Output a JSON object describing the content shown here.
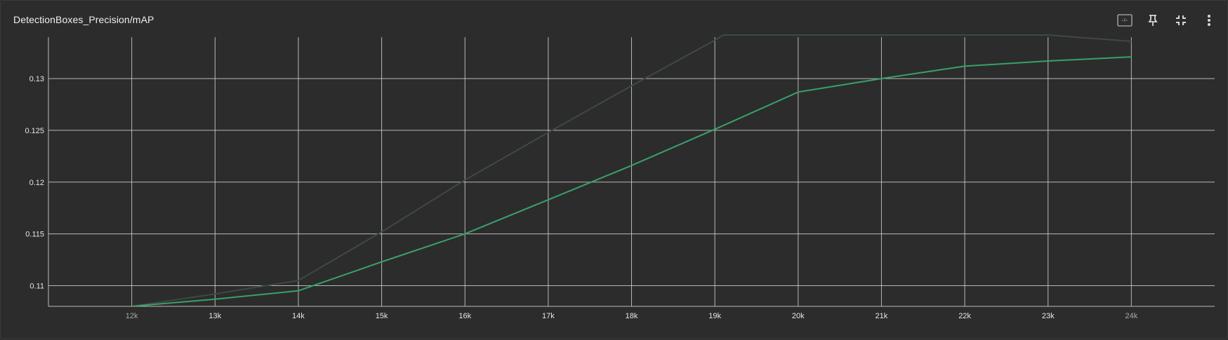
{
  "card": {
    "title": "DetectionBoxes_Precision/mAP"
  },
  "toolbar": {
    "icons": [
      "fit-domain-icon",
      "pin-icon",
      "collapse-icon",
      "more-vert-icon"
    ]
  },
  "colors": {
    "background": "#2c2c2c",
    "grid": "#d0d0d0",
    "main_series": "#3aa06a",
    "ghost_series": "#3d4a44"
  },
  "chart_data": {
    "type": "line",
    "title": "DetectionBoxes_Precision/mAP",
    "xlabel": "",
    "ylabel": "",
    "x_ticks": [
      "12k",
      "13k",
      "14k",
      "15k",
      "16k",
      "17k",
      "18k",
      "19k",
      "20k",
      "21k",
      "22k",
      "23k",
      "24k"
    ],
    "y_ticks": [
      "0.11",
      "0.115",
      "0.12",
      "0.125",
      "0.13"
    ],
    "xlim": [
      11000,
      25000
    ],
    "ylim": [
      0.108,
      0.134
    ],
    "grid": true,
    "series": [
      {
        "style": "ghost",
        "x": [
          12000,
          13000,
          14000,
          15000,
          16000,
          17000,
          18000,
          19000,
          19100,
          23000,
          24000
        ],
        "y": [
          0.108,
          0.1092,
          0.1105,
          0.1152,
          0.1202,
          0.1248,
          0.1293,
          0.1337,
          0.1342,
          0.1342,
          0.1336
        ]
      },
      {
        "style": "main",
        "x": [
          12000,
          13000,
          14000,
          15000,
          16000,
          17000,
          18000,
          19000,
          20000,
          21000,
          22000,
          23000,
          24000
        ],
        "y": [
          0.108,
          0.1087,
          0.1095,
          0.1123,
          0.115,
          0.1183,
          0.1216,
          0.1251,
          0.1287,
          0.13,
          0.1312,
          0.1317,
          0.1321
        ]
      }
    ]
  }
}
